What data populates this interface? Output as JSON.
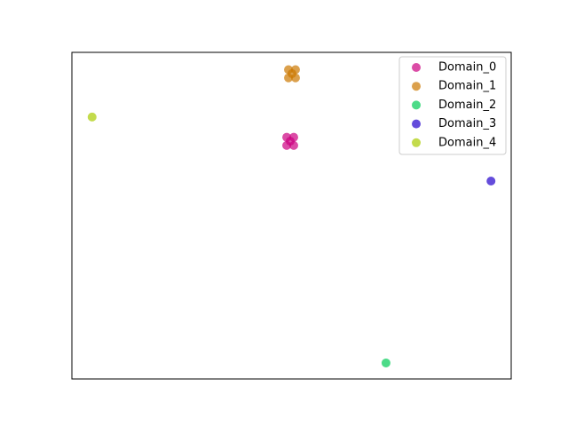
{
  "chart_data": {
    "type": "scatter",
    "xlim": [
      0,
      1
    ],
    "ylim": [
      0,
      1
    ],
    "grid": false,
    "legend": "upper right",
    "series": [
      {
        "name": "Domain_0",
        "color": "#cc0080",
        "x": [
          0.489,
          0.505,
          0.489,
          0.505,
          0.497
        ],
        "y": [
          0.74,
          0.74,
          0.715,
          0.715,
          0.728
        ]
      },
      {
        "name": "Domain_1",
        "color": "#cc7700",
        "x": [
          0.493,
          0.509,
          0.493,
          0.509,
          0.501
        ],
        "y": [
          0.947,
          0.947,
          0.922,
          0.922,
          0.935
        ]
      },
      {
        "name": "Domain_2",
        "color": "#00cc55",
        "x": [
          0.715
        ],
        "y": [
          0.049
        ]
      },
      {
        "name": "Domain_3",
        "color": "#2200cc",
        "x": [
          0.954
        ],
        "y": [
          0.606
        ]
      },
      {
        "name": "Domain_4",
        "color": "#aacc00",
        "x": [
          0.046
        ],
        "y": [
          0.802
        ]
      }
    ]
  }
}
